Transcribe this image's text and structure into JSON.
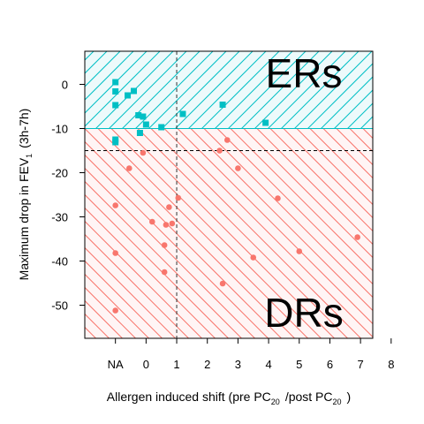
{
  "chart_data": {
    "type": "scatter",
    "xlabel": {
      "main": "Allergen induced shift (pre PC",
      "sub1": "20",
      "mid": "/post PC",
      "sub2": "20",
      "end": ")"
    },
    "ylabel": {
      "main": "Maximum drop in FEV",
      "sub": "1",
      "end": "(3h-7h)"
    },
    "x_tick_labels": [
      "NA",
      "0",
      "1",
      "2",
      "3",
      "4",
      "5",
      "6",
      "7",
      "8"
    ],
    "y_ticks": [
      0,
      -10,
      -20,
      -30,
      -40,
      -50
    ],
    "xlim": [
      -1.0,
      8.4
    ],
    "ylim": [
      -57.5,
      7.5
    ],
    "na_x_position": 0,
    "regions": [
      {
        "label": "ERs",
        "y_from": -10,
        "y_to": 7.5,
        "color": "#00bfc4"
      },
      {
        "label": "DRs",
        "y_from": -57.5,
        "y_to": -10,
        "color": "#f8766d"
      }
    ],
    "reference_lines": {
      "x": 2,
      "y": -15
    },
    "series": [
      {
        "group": "ERs",
        "marker": "square",
        "color": "#00bfc4",
        "points": [
          {
            "x": "NA",
            "y": 0.5
          },
          {
            "x": "NA",
            "y": -1.6
          },
          {
            "x": "NA",
            "y": -4.7
          },
          {
            "x": "NA",
            "y": -12.5
          },
          {
            "x": "NA",
            "y": -13.1
          },
          {
            "x": 0.4,
            "y": -2.5
          },
          {
            "x": 0.6,
            "y": -1.5
          },
          {
            "x": 0.75,
            "y": -7.0
          },
          {
            "x": 0.8,
            "y": -11.0
          },
          {
            "x": 0.9,
            "y": -7.3
          },
          {
            "x": 1.0,
            "y": -9.1
          },
          {
            "x": 1.5,
            "y": -9.7
          },
          {
            "x": 2.2,
            "y": -6.7
          },
          {
            "x": 3.5,
            "y": -4.6
          },
          {
            "x": 4.9,
            "y": -8.7
          }
        ]
      },
      {
        "group": "DRs",
        "marker": "circle",
        "color": "#f8766d",
        "points": [
          {
            "x": "NA",
            "y": -27.4
          },
          {
            "x": "NA",
            "y": -38.2
          },
          {
            "x": "NA",
            "y": -51.2
          },
          {
            "x": 0.45,
            "y": -19.0
          },
          {
            "x": 0.9,
            "y": -15.5
          },
          {
            "x": 1.2,
            "y": -31.1
          },
          {
            "x": 1.6,
            "y": -36.4
          },
          {
            "x": 1.6,
            "y": -42.5
          },
          {
            "x": 1.65,
            "y": -31.8
          },
          {
            "x": 1.75,
            "y": -27.8
          },
          {
            "x": 1.85,
            "y": -31.5
          },
          {
            "x": 2.05,
            "y": -25.7
          },
          {
            "x": 3.4,
            "y": -15.0
          },
          {
            "x": 3.5,
            "y": -45.1
          },
          {
            "x": 3.65,
            "y": -12.6
          },
          {
            "x": 4.0,
            "y": -19.0
          },
          {
            "x": 4.5,
            "y": -39.2
          },
          {
            "x": 5.3,
            "y": -25.8
          },
          {
            "x": 6.0,
            "y": -37.8
          },
          {
            "x": 7.9,
            "y": -34.6
          }
        ]
      }
    ]
  }
}
